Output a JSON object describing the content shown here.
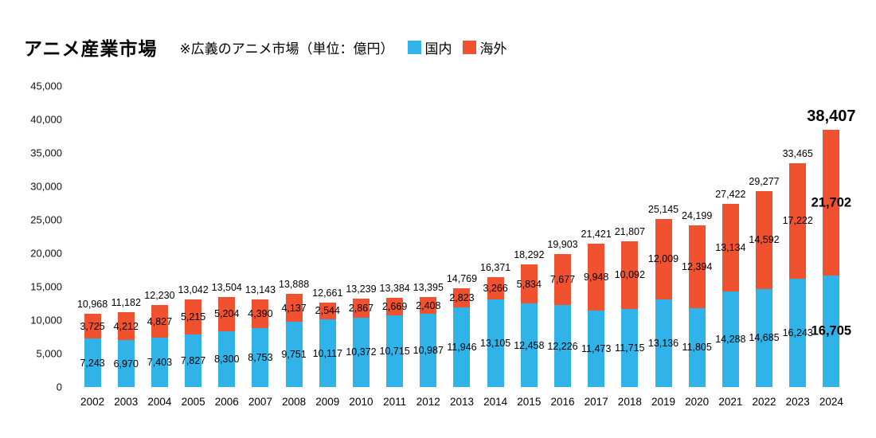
{
  "chart_data": {
    "type": "bar",
    "stacked": true,
    "title": "アニメ産業市場",
    "subtitle": "※広義のアニメ市場（単位：億円）",
    "unit": "億円",
    "categories": [
      "2002",
      "2003",
      "2004",
      "2005",
      "2006",
      "2007",
      "2008",
      "2009",
      "2010",
      "2011",
      "2012",
      "2013",
      "2014",
      "2015",
      "2016",
      "2017",
      "2018",
      "2019",
      "2020",
      "2021",
      "2022",
      "2023",
      "2024"
    ],
    "series": [
      {
        "name": "国内",
        "color": "#2FB3E8",
        "values": [
          7243,
          6970,
          7403,
          7827,
          8300,
          8753,
          9751,
          10117,
          10372,
          10715,
          10987,
          11946,
          13105,
          12458,
          12226,
          11473,
          11715,
          13136,
          11805,
          14288,
          14685,
          16243,
          16705
        ]
      },
      {
        "name": "海外",
        "color": "#F0512F",
        "values": [
          3725,
          4212,
          4827,
          5215,
          5204,
          4390,
          4137,
          2544,
          2867,
          2669,
          2408,
          2823,
          3266,
          5834,
          7677,
          9948,
          10092,
          12009,
          12394,
          13134,
          14592,
          17222,
          21702
        ]
      }
    ],
    "totals": [
      10968,
      11182,
      12230,
      13042,
      13504,
      13143,
      13888,
      12661,
      13239,
      13384,
      13395,
      14769,
      16371,
      18292,
      19903,
      21421,
      21807,
      25145,
      24199,
      27422,
      29277,
      33465,
      38407
    ],
    "ylim": [
      0,
      45000
    ],
    "y_ticks": [
      0,
      5000,
      10000,
      15000,
      20000,
      25000,
      30000,
      35000,
      40000,
      45000
    ],
    "y_tick_labels": [
      "0",
      "5,000",
      "10,000",
      "15,000",
      "20,000",
      "25,000",
      "30,000",
      "35,000",
      "40,000",
      "45,000"
    ],
    "grid": false,
    "legend_position": "top",
    "emphasized_category": "2024",
    "label_color": "#000000"
  }
}
